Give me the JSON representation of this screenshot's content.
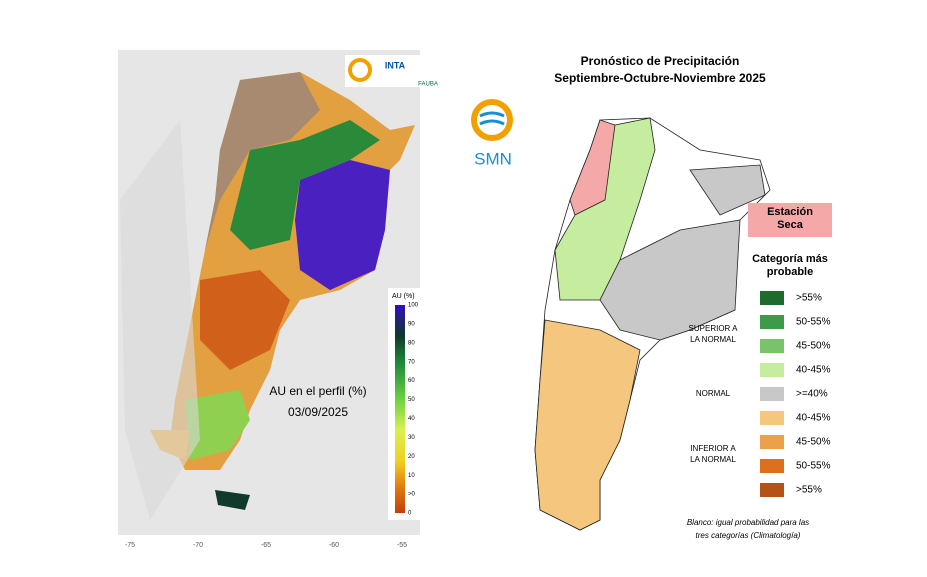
{
  "left_map": {
    "logos": [
      "INTA",
      "FAUBA"
    ],
    "title": "AU en el perfil (%)",
    "date": "03/09/2025",
    "colorbar": {
      "title": "AU (%)",
      "labels": [
        "100",
        "90",
        "80",
        "70",
        "60",
        "50",
        "40",
        "30",
        "20",
        "10",
        ">0",
        "0"
      ]
    },
    "lon_labels": [
      "-75",
      "-70",
      "-65",
      "-60",
      "-55"
    ]
  },
  "right_map": {
    "title": "Pronóstico de Precipitación",
    "subtitle": "Septiembre-Octubre-Noviembre 2025",
    "logo": "SMN",
    "dry_season": "Estación Seca",
    "legend_title": "Categoría más probable",
    "groups": [
      {
        "label": "SUPERIOR A LA NORMAL",
        "items": [
          {
            "label": ">55%",
            "color": "#1e6b2e"
          },
          {
            "label": "50-55%",
            "color": "#3c9a48"
          },
          {
            "label": "45-50%",
            "color": "#79c46a"
          },
          {
            "label": "40-45%",
            "color": "#c6ec9f"
          }
        ]
      },
      {
        "label": "NORMAL",
        "items": [
          {
            "label": ">=40%",
            "color": "#c8c8c8"
          }
        ]
      },
      {
        "label": "INFERIOR A LA NORMAL",
        "items": [
          {
            "label": "40-45%",
            "color": "#f5c77e"
          },
          {
            "label": "45-50%",
            "color": "#eba14a"
          },
          {
            "label": "50-55%",
            "color": "#dd6f1f"
          },
          {
            "label": ">55%",
            "color": "#b4521a"
          }
        ]
      }
    ],
    "note": "Blanco: igual probabilidad para las tres categorías (Climatología)"
  }
}
